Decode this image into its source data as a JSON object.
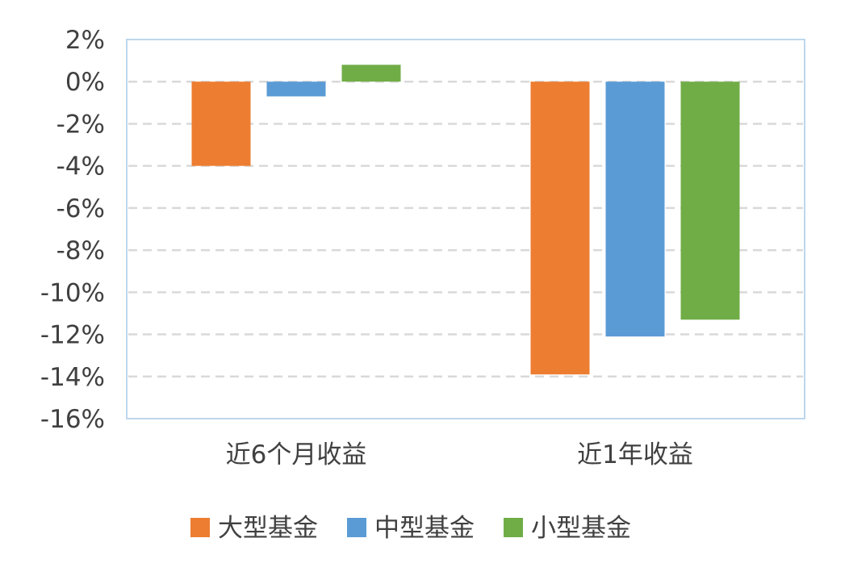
{
  "chart_data": {
    "type": "bar",
    "title": "",
    "xlabel": "",
    "ylabel": "",
    "categories": [
      "近6个月收益",
      "近1年收益"
    ],
    "series": [
      {
        "name": "大型基金",
        "values": [
          -4.0,
          -13.9
        ],
        "color": "#ED7D31"
      },
      {
        "name": "中型基金",
        "values": [
          -0.7,
          -12.1
        ],
        "color": "#5B9BD5"
      },
      {
        "name": "小型基金",
        "values": [
          0.8,
          -11.3
        ],
        "color": "#70AD47"
      }
    ],
    "ylim": [
      -16,
      2
    ],
    "yticks": [
      2,
      0,
      -2,
      -4,
      -6,
      -8,
      -10,
      -12,
      -14,
      -16
    ],
    "ytick_labels": [
      "2%",
      "0%",
      "-2%",
      "-4%",
      "-6%",
      "-8%",
      "-10%",
      "-12%",
      "-14%",
      "-16%"
    ],
    "grid": true,
    "grid_style": "dashed",
    "legend_position": "bottom",
    "colors": {
      "plot_border": "#BDD7EE",
      "grid": "#D9D9D9",
      "text": "#404040"
    }
  }
}
